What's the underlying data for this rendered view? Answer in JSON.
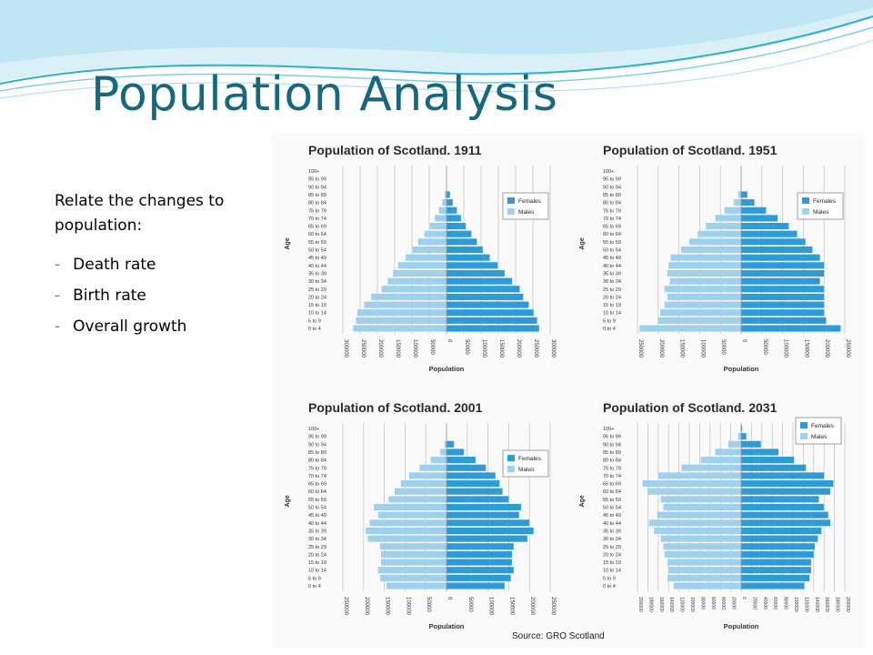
{
  "slide": {
    "title": "Population Analysis",
    "intro": "Relate the changes to population:",
    "bullets": [
      "Death rate",
      "Birth rate",
      "Overall growth"
    ]
  },
  "colors": {
    "title": "#17687e",
    "bullet_dash": "#17a2bd",
    "females": "#2e9bd6",
    "males": "#9fd0ee",
    "wave_light": "#b9e4f1",
    "wave_dark": "#2eaed0"
  },
  "figure": {
    "source": "Source: GRO Scotland"
  },
  "chart_data": [
    {
      "type": "bar",
      "orientation": "population-pyramid",
      "title": "Population of Scotland. 1911",
      "ylabel": "Age",
      "xlabel": "Population",
      "legend_position": "top-right",
      "series": [
        {
          "name": "Females"
        },
        {
          "name": "Males"
        }
      ],
      "grid": true,
      "xlim": [
        -300000,
        300000
      ],
      "xticks": [
        "300000",
        "250000",
        "200000",
        "150000",
        "100000",
        "50000",
        "0",
        "50000",
        "100000",
        "150000",
        "200000",
        "250000",
        "300000"
      ],
      "categories": [
        "0 to 4",
        "5 to 9",
        "10 to 14",
        "15 to 19",
        "20 to 24",
        "25 to 29",
        "30 to 34",
        "35 to 39",
        "40 to 44",
        "45 to 49",
        "50 to 54",
        "55 to 59",
        "60 to 64",
        "65 to 69",
        "70 to 74",
        "75 to 79",
        "80 to 84",
        "85 to 89",
        "90 to 94",
        "95 to 99",
        "100+"
      ],
      "females": [
        268000,
        262000,
        252000,
        238000,
        222000,
        212000,
        190000,
        168000,
        148000,
        125000,
        105000,
        88000,
        72000,
        56000,
        42000,
        30000,
        18000,
        10000,
        0,
        0,
        0
      ],
      "males": [
        270000,
        262000,
        258000,
        238000,
        218000,
        188000,
        170000,
        155000,
        140000,
        118000,
        98000,
        82000,
        64000,
        48000,
        34000,
        22000,
        12000,
        5000,
        0,
        0,
        0
      ]
    },
    {
      "type": "bar",
      "orientation": "population-pyramid",
      "title": "Population of Scotland. 1951",
      "ylabel": "Age",
      "xlabel": "Population",
      "legend_position": "top-right",
      "series": [
        {
          "name": "Females"
        },
        {
          "name": "Males"
        }
      ],
      "grid": true,
      "xlim": [
        -250000,
        250000
      ],
      "xticks": [
        "250000",
        "200000",
        "150000",
        "100000",
        "50000",
        "0",
        "50000",
        "100000",
        "150000",
        "200000",
        "250000"
      ],
      "categories": [
        "0 to 4",
        "5 to 9",
        "10 to 14",
        "15 to 19",
        "20 to 24",
        "25 to 29",
        "30 to 34",
        "35 to 39",
        "40 to 44",
        "45 to 49",
        "50 to 54",
        "55 to 59",
        "60 to 64",
        "65 to 69",
        "70 to 74",
        "75 to 79",
        "80 to 84",
        "85 to 89",
        "90 to 94",
        "95 to 99",
        "100+"
      ],
      "females": [
        240000,
        205000,
        200000,
        200000,
        200000,
        200000,
        190000,
        200000,
        200000,
        190000,
        172000,
        155000,
        135000,
        115000,
        88000,
        60000,
        32000,
        15000,
        0,
        0,
        0
      ],
      "males": [
        245000,
        200000,
        195000,
        185000,
        178000,
        185000,
        172000,
        178000,
        175000,
        170000,
        145000,
        125000,
        105000,
        85000,
        62000,
        40000,
        18000,
        7000,
        0,
        0,
        0
      ]
    },
    {
      "type": "bar",
      "orientation": "population-pyramid",
      "title": "Population of Scotland. 2001",
      "ylabel": "Age",
      "xlabel": "Population",
      "legend_position": "top-right",
      "series": [
        {
          "name": "Females"
        },
        {
          "name": "Males"
        }
      ],
      "grid": true,
      "xlim": [
        -250000,
        250000
      ],
      "xticks": [
        "250000",
        "200000",
        "150000",
        "100000",
        "50000",
        "0",
        "50000",
        "100000",
        "150000",
        "200000",
        "250000"
      ],
      "categories": [
        "0 to 4",
        "5 to 9",
        "10 to 14",
        "15 to 19",
        "20 to 24",
        "25 to 29",
        "30 to 34",
        "35 to 39",
        "40 to 44",
        "45 to 49",
        "50 to 54",
        "55 to 59",
        "60 to 64",
        "65 to 69",
        "70 to 74",
        "75 to 79",
        "80 to 84",
        "85 to 89",
        "90 to 94",
        "95 to 99",
        "100+"
      ],
      "females": [
        140000,
        155000,
        162000,
        158000,
        158000,
        162000,
        195000,
        210000,
        200000,
        175000,
        180000,
        150000,
        135000,
        128000,
        118000,
        95000,
        70000,
        42000,
        18000,
        0,
        0
      ],
      "males": [
        145000,
        160000,
        165000,
        158000,
        158000,
        160000,
        190000,
        195000,
        185000,
        165000,
        175000,
        140000,
        125000,
        110000,
        90000,
        65000,
        38000,
        15000,
        5000,
        0,
        0
      ]
    },
    {
      "type": "bar",
      "orientation": "population-pyramid",
      "title": "Population of Scotland. 2031",
      "ylabel": "Age",
      "xlabel": "Population",
      "legend_position": "top-right",
      "series": [
        {
          "name": "Females"
        },
        {
          "name": "Males"
        }
      ],
      "grid": true,
      "xlim": [
        -200000,
        200000
      ],
      "xticks": [
        "200000",
        "180000",
        "160000",
        "140000",
        "120000",
        "100000",
        "80000",
        "60000",
        "40000",
        "20000",
        "0",
        "20000",
        "40000",
        "60000",
        "80000",
        "100000",
        "120000",
        "140000",
        "160000",
        "180000",
        "200000"
      ],
      "categories": [
        "0 to 4",
        "5 to 9",
        "10 to 14",
        "15 to 19",
        "20 to 24",
        "25 to 29",
        "30 to 34",
        "35 to 39",
        "40 to 44",
        "45 to 49",
        "50 to 54",
        "55 to 59",
        "60 to 64",
        "65 to 69",
        "70 to 74",
        "75 to 79",
        "80 to 84",
        "85 to 89",
        "90 to 94",
        "95 to 99",
        "100+"
      ],
      "females": [
        122000,
        132000,
        135000,
        135000,
        140000,
        142000,
        148000,
        155000,
        172000,
        168000,
        160000,
        150000,
        172000,
        178000,
        160000,
        125000,
        102000,
        72000,
        38000,
        10000,
        2000
      ],
      "males": [
        130000,
        142000,
        140000,
        142000,
        148000,
        150000,
        155000,
        168000,
        178000,
        162000,
        150000,
        155000,
        180000,
        190000,
        160000,
        115000,
        78000,
        50000,
        25000,
        6000,
        1000
      ]
    }
  ]
}
